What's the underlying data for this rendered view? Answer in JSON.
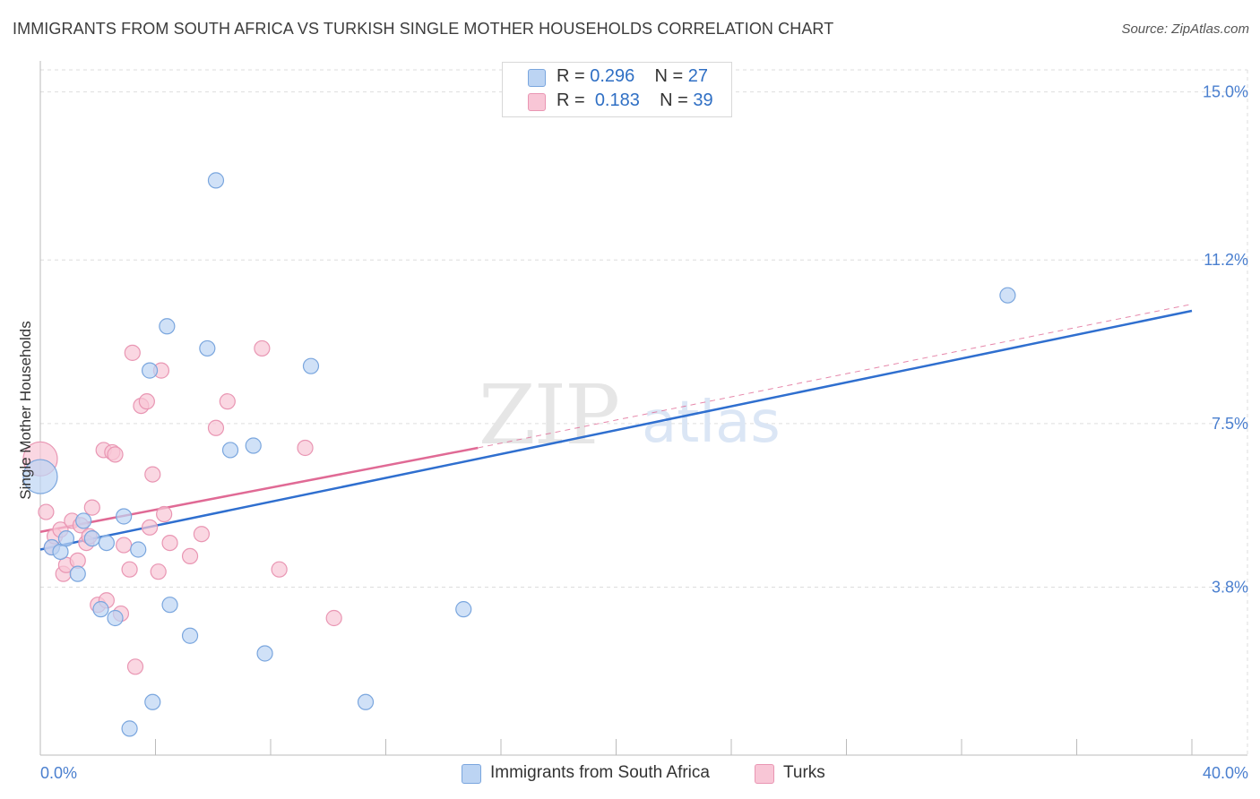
{
  "header": {
    "title": "IMMIGRANTS FROM SOUTH AFRICA VS TURKISH SINGLE MOTHER HOUSEHOLDS CORRELATION CHART",
    "source": "Source: ZipAtlas.com"
  },
  "watermark": {
    "zip": "ZIP",
    "atlas": "atlas"
  },
  "legend": {
    "rows": [
      {
        "r_label": "R =",
        "r_value": "0.296",
        "n_label": "N =",
        "n_value": "27"
      },
      {
        "r_label": "R =",
        "r_value": "0.183",
        "n_label": "N =",
        "n_value": "39"
      }
    ]
  },
  "bottom_legend": {
    "series_a": "Immigrants from South Africa",
    "series_b": "Turks"
  },
  "colors": {
    "blue_fill": "#bcd4f3",
    "blue_stroke": "#7aa6de",
    "blue_line": "#2f6fcf",
    "pink_fill": "#f8c6d6",
    "pink_stroke": "#e996b3",
    "pink_line": "#e06a95",
    "axis_text": "#4a7fcf",
    "grid": "#dddddd"
  },
  "chart_data": {
    "type": "scatter",
    "title": "IMMIGRANTS FROM SOUTH AFRICA VS TURKISH SINGLE MOTHER HOUSEHOLDS CORRELATION CHART",
    "xlabel": "",
    "ylabel": "Single Mother Households",
    "xlim": [
      0,
      40
    ],
    "ylim": [
      0,
      15.5
    ],
    "x_tick_labels": [
      "0.0%",
      "40.0%"
    ],
    "y_ticks": [
      3.8,
      7.5,
      11.2,
      15.0
    ],
    "y_tick_labels": [
      "3.8%",
      "7.5%",
      "11.2%",
      "15.0%"
    ],
    "grid": true,
    "series": [
      {
        "name": "Immigrants from South Africa",
        "color": "#2f6fcf",
        "R": 0.296,
        "N": 27,
        "trend": {
          "x0": 0,
          "y0": 4.65,
          "x1": 40,
          "y1": 10.05,
          "style": "solid"
        },
        "points": [
          {
            "x": 0.0,
            "y": 6.3,
            "big": true
          },
          {
            "x": 0.4,
            "y": 4.7
          },
          {
            "x": 0.7,
            "y": 4.6
          },
          {
            "x": 0.9,
            "y": 4.9
          },
          {
            "x": 1.3,
            "y": 4.1
          },
          {
            "x": 1.5,
            "y": 5.3
          },
          {
            "x": 1.8,
            "y": 4.9
          },
          {
            "x": 2.3,
            "y": 4.8
          },
          {
            "x": 2.1,
            "y": 3.3
          },
          {
            "x": 2.6,
            "y": 3.1
          },
          {
            "x": 2.9,
            "y": 5.4
          },
          {
            "x": 3.1,
            "y": 0.6
          },
          {
            "x": 3.4,
            "y": 4.65
          },
          {
            "x": 3.9,
            "y": 1.2
          },
          {
            "x": 3.8,
            "y": 8.7
          },
          {
            "x": 4.4,
            "y": 9.7
          },
          {
            "x": 4.5,
            "y": 3.4
          },
          {
            "x": 5.2,
            "y": 2.7
          },
          {
            "x": 5.8,
            "y": 9.2
          },
          {
            "x": 6.1,
            "y": 13.0
          },
          {
            "x": 6.6,
            "y": 6.9
          },
          {
            "x": 7.4,
            "y": 7.0
          },
          {
            "x": 7.8,
            "y": 2.3
          },
          {
            "x": 9.4,
            "y": 8.8
          },
          {
            "x": 11.3,
            "y": 1.2
          },
          {
            "x": 14.7,
            "y": 3.3
          },
          {
            "x": 33.6,
            "y": 10.4
          }
        ]
      },
      {
        "name": "Turks",
        "color": "#e06a95",
        "R": 0.183,
        "N": 39,
        "trend": {
          "x0": 0,
          "y0": 5.05,
          "x1": 15.2,
          "y1": 6.95,
          "style": "solid",
          "ext_x1": 40,
          "ext_y1": 10.2,
          "ext_style": "dashed"
        },
        "points": [
          {
            "x": 0.0,
            "y": 6.7,
            "big": true
          },
          {
            "x": 0.2,
            "y": 5.5
          },
          {
            "x": 0.4,
            "y": 4.7
          },
          {
            "x": 0.5,
            "y": 4.95
          },
          {
            "x": 0.7,
            "y": 5.1
          },
          {
            "x": 0.8,
            "y": 4.1
          },
          {
            "x": 0.9,
            "y": 4.3
          },
          {
            "x": 1.1,
            "y": 5.3
          },
          {
            "x": 1.3,
            "y": 4.4
          },
          {
            "x": 1.4,
            "y": 5.2
          },
          {
            "x": 1.6,
            "y": 4.8
          },
          {
            "x": 1.7,
            "y": 4.95
          },
          {
            "x": 1.8,
            "y": 5.6
          },
          {
            "x": 2.0,
            "y": 3.4
          },
          {
            "x": 2.2,
            "y": 6.9
          },
          {
            "x": 2.3,
            "y": 3.5
          },
          {
            "x": 2.5,
            "y": 6.85
          },
          {
            "x": 2.6,
            "y": 6.8
          },
          {
            "x": 2.8,
            "y": 3.2
          },
          {
            "x": 2.9,
            "y": 4.75
          },
          {
            "x": 3.1,
            "y": 4.2
          },
          {
            "x": 3.2,
            "y": 9.1
          },
          {
            "x": 3.3,
            "y": 2.0
          },
          {
            "x": 3.5,
            "y": 7.9
          },
          {
            "x": 3.7,
            "y": 8.0
          },
          {
            "x": 3.8,
            "y": 5.15
          },
          {
            "x": 3.9,
            "y": 6.35
          },
          {
            "x": 4.1,
            "y": 4.15
          },
          {
            "x": 4.2,
            "y": 8.7
          },
          {
            "x": 4.3,
            "y": 5.45
          },
          {
            "x": 4.5,
            "y": 4.8
          },
          {
            "x": 5.2,
            "y": 4.5
          },
          {
            "x": 5.6,
            "y": 5.0
          },
          {
            "x": 6.1,
            "y": 7.4
          },
          {
            "x": 6.5,
            "y": 8.0
          },
          {
            "x": 7.7,
            "y": 9.2
          },
          {
            "x": 8.3,
            "y": 4.2
          },
          {
            "x": 9.2,
            "y": 6.95
          },
          {
            "x": 10.2,
            "y": 3.1
          }
        ]
      }
    ]
  }
}
